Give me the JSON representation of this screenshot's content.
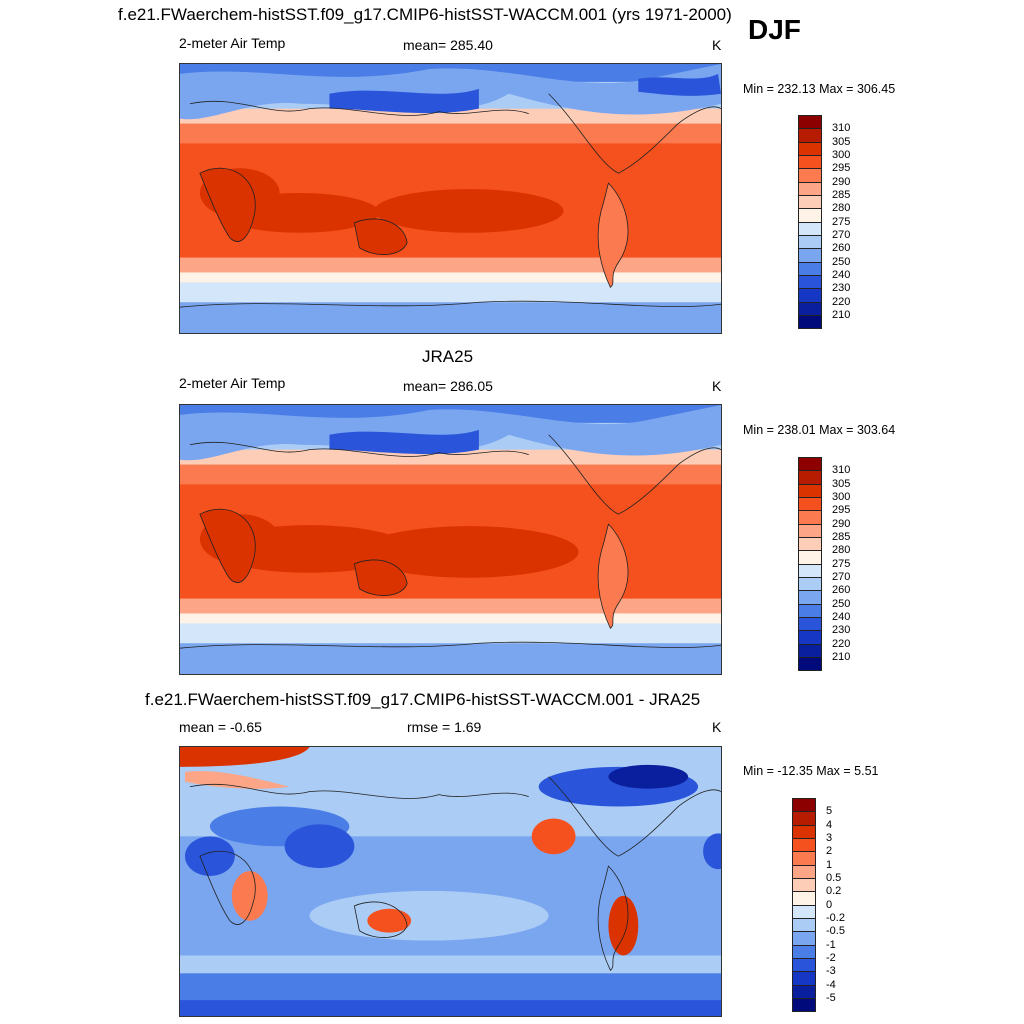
{
  "season": "DJF",
  "panel1": {
    "title": "f.e21.FWaerchem-histSST.f09_g17.CMIP6-histSST-WACCM.001 (yrs 1971-2000)",
    "left": "2-meter Air Temp",
    "center": "mean= 285.40",
    "units": "K",
    "minmax": "Min = 232.13 Max = 306.45"
  },
  "panel2": {
    "title": "JRA25",
    "left": "2-meter Air Temp",
    "center": "mean= 286.05",
    "units": "K",
    "minmax": "Min = 238.01 Max = 303.64"
  },
  "panel3": {
    "title": "f.e21.FWaerchem-histSST.f09_g17.CMIP6-histSST-WACCM.001 - JRA25",
    "left": "mean =  -0.65",
    "center": "rmse =   1.69",
    "units": "K",
    "minmax": "Min = -12.35 Max =   5.51"
  },
  "temp_levels": [
    "310",
    "305",
    "300",
    "295",
    "290",
    "285",
    "280",
    "275",
    "270",
    "260",
    "250",
    "240",
    "230",
    "220",
    "210"
  ],
  "diff_levels": [
    "5",
    "4",
    "3",
    "2",
    "1",
    "0.5",
    "0.2",
    "0",
    "-0.2",
    "-0.5",
    "-1",
    "-2",
    "-3",
    "-4",
    "-5"
  ],
  "colors": [
    "#8c0000",
    "#b81c00",
    "#db3300",
    "#f4511e",
    "#fb7a4f",
    "#fca687",
    "#fdcdb8",
    "#fff2e6",
    "#d4e6fa",
    "#aaccf5",
    "#7aa6f0",
    "#4a7de6",
    "#2a55da",
    "#1636c4",
    "#0a1f9e",
    "#000a7a"
  ]
}
